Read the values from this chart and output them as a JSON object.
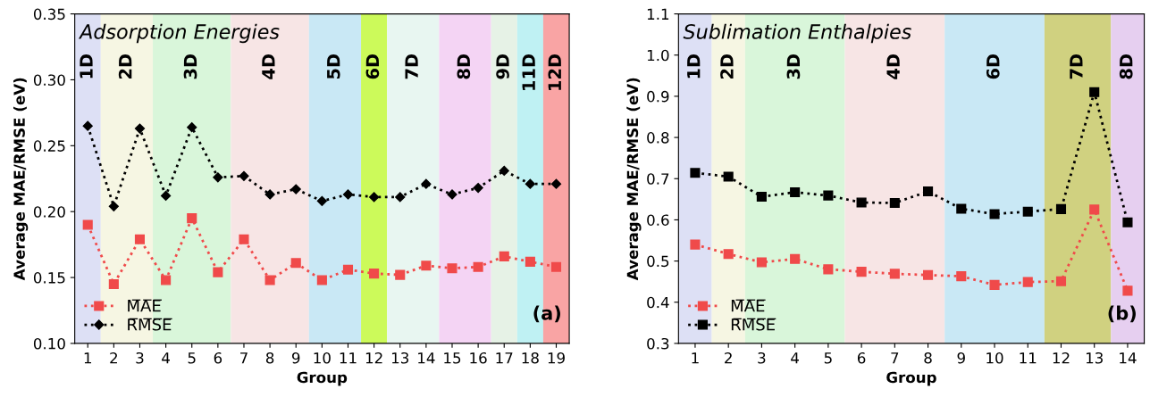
{
  "chart_data": [
    {
      "type": "line",
      "title": "Adsorption Energies",
      "xlabel": "Group",
      "ylabel": "Average MAE/RMSE (eV)",
      "annotations": [
        "(a)"
      ],
      "xlim": [
        0.5,
        19.5
      ],
      "xticks": [
        1,
        2,
        3,
        4,
        5,
        6,
        7,
        8,
        9,
        10,
        11,
        12,
        13,
        14,
        15,
        16,
        17,
        18,
        19
      ],
      "ylim": [
        0.1,
        0.35
      ],
      "yticks": [
        {
          "value": 0.1,
          "label": "0.10"
        },
        {
          "value": 0.15,
          "label": "0.15"
        },
        {
          "value": 0.2,
          "label": "0.20"
        },
        {
          "value": 0.25,
          "label": "0.25"
        },
        {
          "value": 0.3,
          "label": "0.30"
        },
        {
          "value": 0.35,
          "label": "0.35"
        }
      ],
      "grid": false,
      "legend": "bottom left",
      "line_style": "dotted",
      "x": [
        1,
        2,
        3,
        4,
        5,
        6,
        7,
        8,
        9,
        10,
        11,
        12,
        13,
        14,
        15,
        16,
        17,
        18,
        19
      ],
      "series": [
        {
          "name": "M̅A̅E̅",
          "color": "#f04a4a",
          "marker": "square",
          "values": [
            0.19,
            0.145,
            0.179,
            0.148,
            0.195,
            0.154,
            0.179,
            0.148,
            0.161,
            0.148,
            0.156,
            0.153,
            0.152,
            0.159,
            0.157,
            0.158,
            0.166,
            0.162,
            0.158
          ]
        },
        {
          "name": "R̅M̅S̅E̅",
          "color": "#000000",
          "marker": "diamond",
          "values": [
            0.265,
            0.204,
            0.263,
            0.212,
            0.264,
            0.226,
            0.227,
            0.213,
            0.217,
            0.208,
            0.213,
            0.211,
            0.211,
            0.221,
            0.213,
            0.218,
            0.231,
            0.221,
            0.221
          ]
        }
      ],
      "bands": [
        {
          "axis": "x",
          "from": 0.5,
          "to": 1.5,
          "label": "1D",
          "color": "#dde0f5"
        },
        {
          "axis": "x",
          "from": 1.5,
          "to": 3.5,
          "label": "2D",
          "color": "#f6f6e3"
        },
        {
          "axis": "x",
          "from": 3.5,
          "to": 6.5,
          "label": "3D",
          "color": "#d9f6da"
        },
        {
          "axis": "x",
          "from": 6.5,
          "to": 9.5,
          "label": "4D",
          "color": "#f7e5e5"
        },
        {
          "axis": "x",
          "from": 9.5,
          "to": 11.5,
          "label": "5D",
          "color": "#c9e8f5"
        },
        {
          "axis": "x",
          "from": 11.5,
          "to": 12.5,
          "label": "6D",
          "color": "#ccfa5a"
        },
        {
          "axis": "x",
          "from": 12.5,
          "to": 14.5,
          "label": "7D",
          "color": "#e8f6f1"
        },
        {
          "axis": "x",
          "from": 14.5,
          "to": 16.5,
          "label": "8D",
          "color": "#f4d4f4"
        },
        {
          "axis": "x",
          "from": 16.5,
          "to": 17.5,
          "label": "9D",
          "color": "#e6f2e6"
        },
        {
          "axis": "x",
          "from": 17.5,
          "to": 18.5,
          "label": "11D",
          "color": "#bff1f3"
        },
        {
          "axis": "x",
          "from": 18.5,
          "to": 19.5,
          "label": "12D",
          "color": "#f9a4a4"
        }
      ]
    },
    {
      "type": "line",
      "title": "Sublimation Enthalpies",
      "xlabel": "Group",
      "ylabel": "Average MAE/RMSE (eV)",
      "annotations": [
        "(b)"
      ],
      "xlim": [
        0.5,
        14.5
      ],
      "xticks": [
        1,
        2,
        3,
        4,
        5,
        6,
        7,
        8,
        9,
        10,
        11,
        12,
        13,
        14
      ],
      "ylim": [
        0.3,
        1.1
      ],
      "yticks": [
        0.3,
        0.4,
        0.5,
        0.6,
        0.7,
        0.8,
        0.9,
        {
          "value": 1.0,
          "label": "1.0"
        },
        1.1
      ],
      "grid": false,
      "legend": "bottom left",
      "line_style": "dotted",
      "x": [
        1,
        2,
        3,
        4,
        5,
        6,
        7,
        8,
        9,
        10,
        11,
        12,
        13,
        14
      ],
      "series": [
        {
          "name": "M̅A̅E̅",
          "color": "#f04a4a",
          "marker": "square",
          "values": [
            0.54,
            0.517,
            0.497,
            0.505,
            0.48,
            0.474,
            0.469,
            0.466,
            0.463,
            0.442,
            0.449,
            0.451,
            0.625,
            0.428
          ]
        },
        {
          "name": "R̅M̅S̅E̅",
          "color": "#000000",
          "marker": "square",
          "values": [
            0.714,
            0.705,
            0.656,
            0.667,
            0.659,
            0.642,
            0.641,
            0.669,
            0.627,
            0.614,
            0.62,
            0.626,
            0.91,
            0.594
          ]
        }
      ],
      "bands": [
        {
          "axis": "x",
          "from": 0.5,
          "to": 1.5,
          "label": "1D",
          "color": "#dde0f5"
        },
        {
          "axis": "x",
          "from": 1.5,
          "to": 2.5,
          "label": "2D",
          "color": "#f6f6e3"
        },
        {
          "axis": "x",
          "from": 2.5,
          "to": 5.5,
          "label": "3D",
          "color": "#d9f6da"
        },
        {
          "axis": "x",
          "from": 5.5,
          "to": 8.5,
          "label": "4D",
          "color": "#f7e5e5"
        },
        {
          "axis": "x",
          "from": 8.5,
          "to": 11.5,
          "label": "6D",
          "color": "#c9e8f5"
        },
        {
          "axis": "x",
          "from": 11.5,
          "to": 13.5,
          "label": "7D",
          "color": "#d0d180"
        },
        {
          "axis": "x",
          "from": 13.5,
          "to": 14.5,
          "label": "8D",
          "color": "#e6cff0"
        }
      ]
    }
  ]
}
